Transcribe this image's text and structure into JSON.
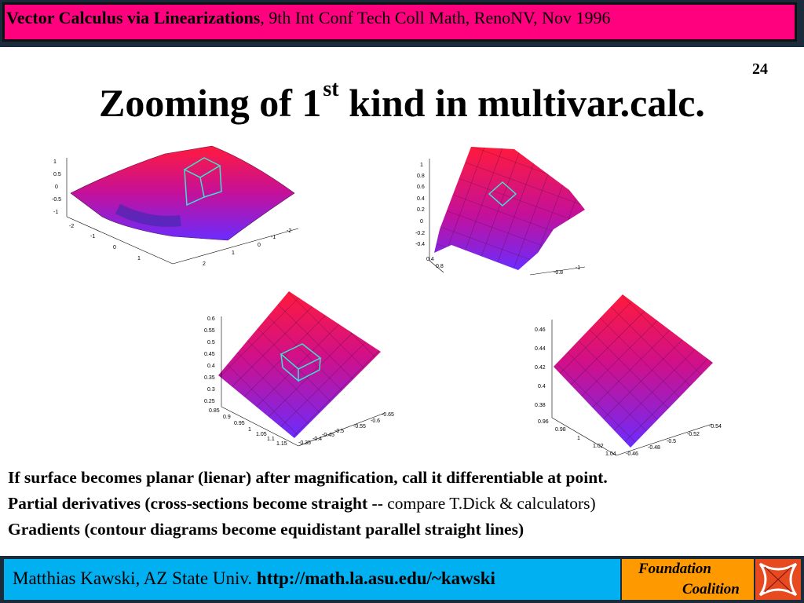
{
  "header": {
    "title_bold": "Vector Calculus via Linearizations",
    "title_rest": ", 9th Int Conf Tech Coll Math, RenoNV, Nov 1996"
  },
  "slide_number": "24",
  "title": {
    "before_sup": "Zooming of 1",
    "sup": "st",
    "after_sup": " kind in multivar.calc."
  },
  "plots": [
    {
      "z_ticks": [
        "1",
        "0.5",
        "0",
        "-0.5",
        "-1"
      ],
      "x_ticks": [
        "-2",
        "-1",
        "0",
        "1"
      ],
      "y_ticks": [
        "2",
        "1",
        "0",
        "-1",
        "-2"
      ]
    },
    {
      "z_ticks": [
        "1",
        "0.8",
        "0.6",
        "0.4",
        "0.2",
        "0",
        "-0.2",
        "-0.4"
      ],
      "x_ticks": [
        "0.4",
        "0.8"
      ],
      "y_ticks": [
        "-0.8",
        "-1"
      ]
    },
    {
      "z_ticks": [
        "0.6",
        "0.55",
        "0.5",
        "0.45",
        "0.4",
        "0.35",
        "0.3",
        "0.25"
      ],
      "x_ticks": [
        "0.85",
        "0.9",
        "0.95",
        "1",
        "1.05",
        "1.1",
        "1.15"
      ],
      "y_ticks": [
        "-0.65",
        "-0.6",
        "-0.55",
        "-0.5",
        "-0.45",
        "-0.4",
        "-0.35"
      ]
    },
    {
      "z_ticks": [
        "0.46",
        "0.44",
        "0.42",
        "0.4",
        "0.38"
      ],
      "x_ticks": [
        "0.96",
        "0.98",
        "1",
        "1.02",
        "1.04"
      ],
      "y_ticks": [
        "-0.54",
        "-0.52",
        "-0.5",
        "-0.48",
        "-0.46"
      ]
    }
  ],
  "bullets": [
    {
      "bold": "If  surface becomes planar (lienar) after magnification, call it differentiable at point.",
      "normal": ""
    },
    {
      "bold": "Partial derivatives (cross-sections become straight -- ",
      "normal": "compare T.Dick & calculators)"
    },
    {
      "bold": "Gradients (contour diagrams become  equidistant parallel straight lines)",
      "normal": ""
    }
  ],
  "footer": {
    "author": "Matthias Kawski, AZ State Univ. ",
    "url": "http://math.la.asu.edu/~kawski",
    "fc_line1": "Foundation",
    "fc_line2": "Coalition"
  },
  "colors": {
    "header_bg": "#ff007f",
    "footer_bg": "#00b0f0",
    "logo_bg": "#ff9900",
    "surface_top": "#ff1a3c",
    "surface_bottom": "#7a2cff",
    "box_outline": "#40e0d0"
  }
}
